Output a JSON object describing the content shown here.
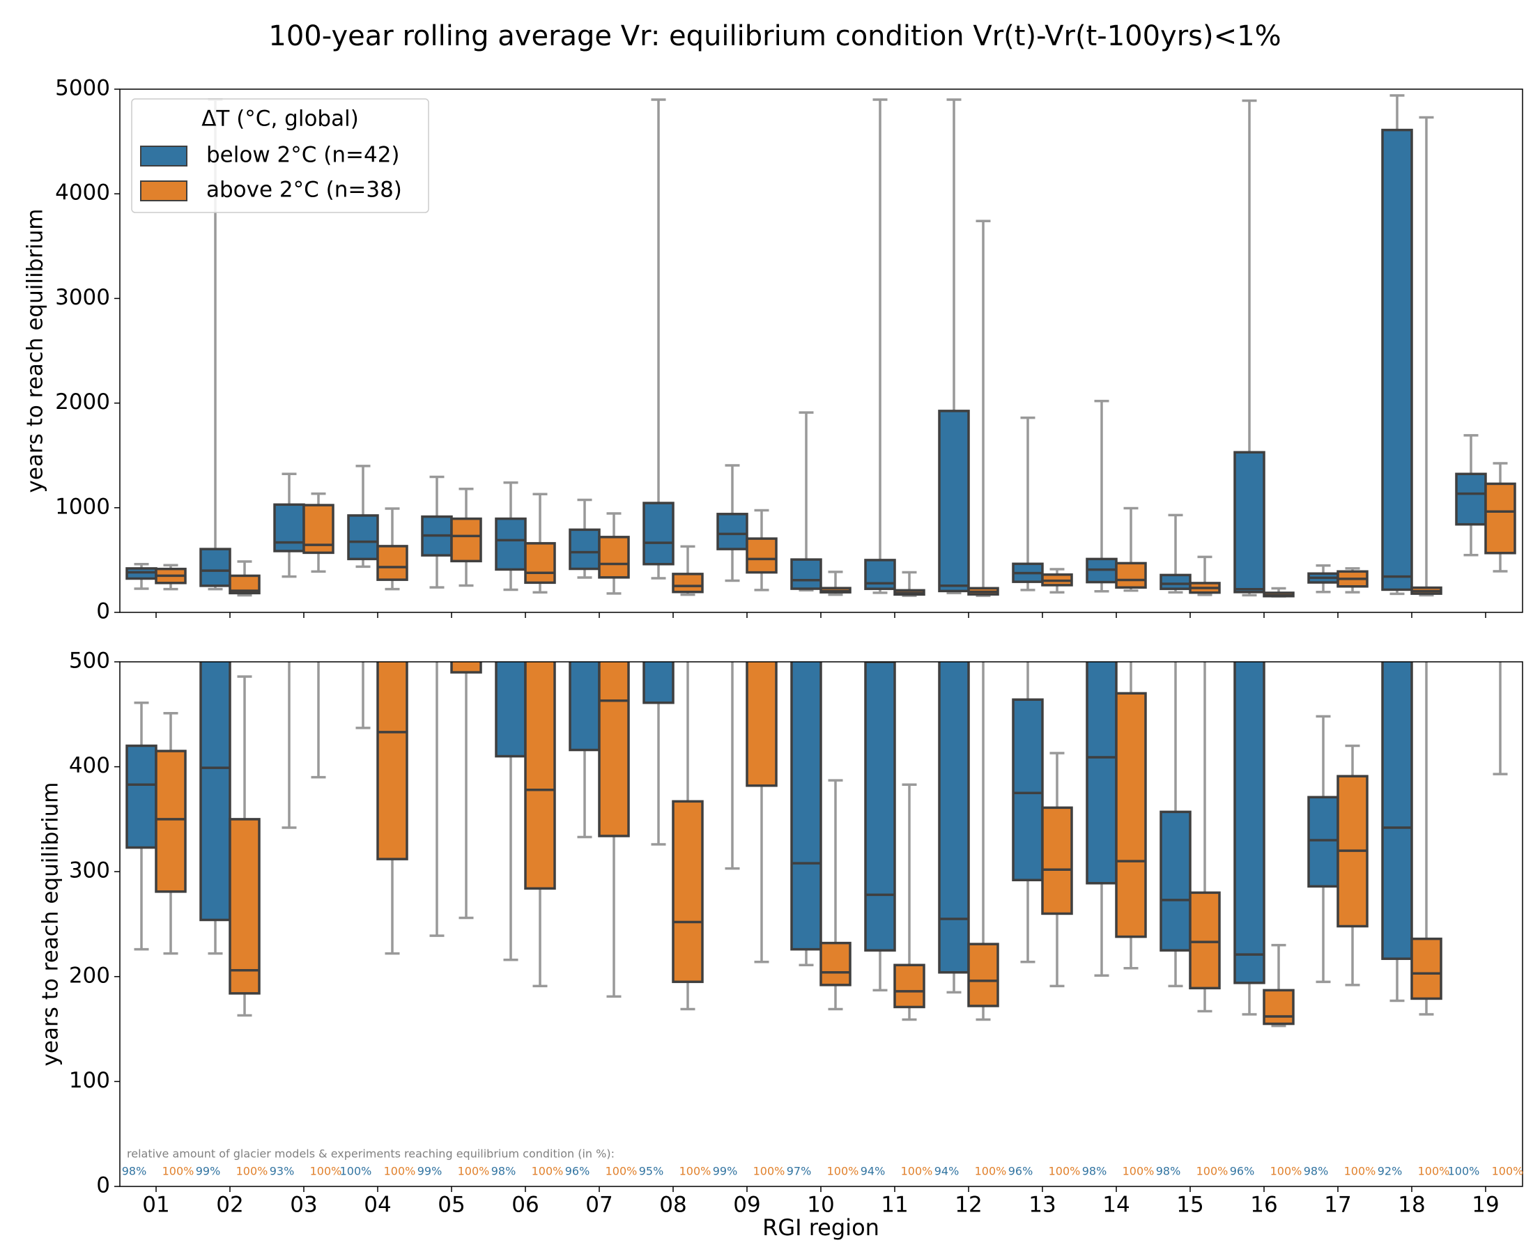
{
  "chart_data": {
    "type": "box",
    "title": "100-year rolling average Vr: equilibrium condition Vr(t)-Vr(t-100yrs)<1%",
    "xlabel": "RGI region",
    "categories": [
      "01",
      "02",
      "03",
      "04",
      "05",
      "06",
      "07",
      "08",
      "09",
      "10",
      "11",
      "12",
      "13",
      "14",
      "15",
      "16",
      "17",
      "18",
      "19"
    ],
    "legend_title": "ΔT (°C, global)",
    "legend_loc": "upper left",
    "annotation": "relative amount of glacier models & experiments reaching equilibrium condition (in %):",
    "panels": [
      {
        "ylim": [
          0,
          5000
        ],
        "yticks": [
          0,
          1000,
          2000,
          3000,
          4000,
          5000
        ],
        "ylabel": "years to reach equilibrium"
      },
      {
        "ylim": [
          0,
          500
        ],
        "yticks": [
          0,
          100,
          200,
          300,
          400,
          500
        ],
        "ylabel": "years to reach equilibrium"
      }
    ],
    "series": [
      {
        "name": "below 2°C (n=42)",
        "color": "#3274a1",
        "whislo": [
          226,
          222,
          342,
          437,
          239,
          216,
          333,
          326,
          303,
          211,
          187,
          185,
          214,
          201,
          191,
          164,
          195,
          177,
          548
        ],
        "q1": [
          323,
          254,
          586,
          510,
          545,
          410,
          416,
          461,
          605,
          226,
          225,
          204,
          292,
          289,
          225,
          194,
          286,
          217,
          841
        ],
        "med": [
          383,
          399,
          668,
          675,
          735,
          690,
          575,
          665,
          750,
          308,
          278,
          255,
          375,
          409,
          273,
          221,
          330,
          342,
          1134
        ],
        "q3": [
          420,
          605,
          1030,
          926,
          915,
          895,
          790,
          1045,
          940,
          505,
          500,
          1925,
          464,
          510,
          357,
          1530,
          371,
          4610,
          1323
        ],
        "whishi": [
          461,
          4900,
          1323,
          1399,
          1295,
          1240,
          1075,
          4900,
          1405,
          1910,
          4900,
          4900,
          1860,
          2020,
          930,
          4890,
          448,
          4940,
          1692
        ],
        "annotation_labels": [
          "98%",
          "99%",
          "93%",
          "100%",
          "99%",
          "98%",
          "96%",
          "95%",
          "99%",
          "97%",
          "94%",
          "94%",
          "96%",
          "98%",
          "98%",
          "96%",
          "98%",
          "92%",
          "100%"
        ]
      },
      {
        "name": "above 2°C (n=38)",
        "color": "#e1812c",
        "whislo": [
          222,
          163,
          390,
          222,
          256,
          191,
          181,
          169,
          214,
          169,
          159,
          159,
          191,
          208,
          167,
          153,
          192,
          164,
          393
        ],
        "q1": [
          281,
          184,
          570,
          312,
          490,
          284,
          334,
          195,
          382,
          192,
          171,
          172,
          260,
          238,
          189,
          155,
          248,
          179,
          567
        ],
        "med": [
          350,
          206,
          645,
          433,
          730,
          378,
          463,
          252,
          510,
          204,
          186,
          196,
          302,
          310,
          233,
          162,
          320,
          203,
          964
        ],
        "q3": [
          415,
          350,
          1025,
          633,
          895,
          660,
          720,
          367,
          705,
          232,
          211,
          231,
          361,
          470,
          280,
          187,
          391,
          236,
          1229
        ],
        "whishi": [
          451,
          486,
          1134,
          992,
          1180,
          1130,
          945,
          630,
          975,
          387,
          383,
          3740,
          413,
          995,
          530,
          230,
          420,
          4730,
          1425
        ],
        "annotation_labels": [
          "100%",
          "100%",
          "100%",
          "100%",
          "100%",
          "100%",
          "100%",
          "100%",
          "100%",
          "100%",
          "100%",
          "100%",
          "100%",
          "100%",
          "100%",
          "100%",
          "100%",
          "100%",
          "100%"
        ]
      }
    ]
  }
}
